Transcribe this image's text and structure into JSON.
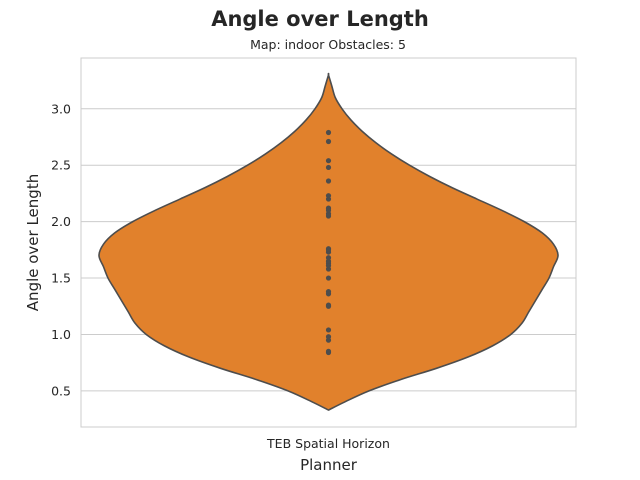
{
  "chart_data": {
    "type": "violin",
    "title": "Angle over Length",
    "subtitle": "Map: indoor Obstacles: 5",
    "xlabel": "Planner",
    "ylabel": "Angle over Length",
    "categories": [
      "TEB Spatial Horizon"
    ],
    "ylim": [
      0.18,
      3.45
    ],
    "yticks": [
      0.5,
      1.0,
      1.5,
      2.0,
      2.5,
      3.0
    ],
    "ytick_labels": [
      "0.5",
      "1.0",
      "1.5",
      "2.0",
      "2.5",
      "3.0"
    ],
    "grid": "horizontal",
    "fill_color": "#e1812c",
    "edge_color": "#4d4d4d",
    "point_color": "#4d4d4d",
    "violin_range": [
      0.33,
      3.3
    ],
    "density_profile": [
      [
        0.33,
        0.0
      ],
      [
        0.4,
        0.07
      ],
      [
        0.5,
        0.18
      ],
      [
        0.6,
        0.32
      ],
      [
        0.7,
        0.48
      ],
      [
        0.8,
        0.62
      ],
      [
        0.9,
        0.73
      ],
      [
        1.0,
        0.81
      ],
      [
        1.1,
        0.86
      ],
      [
        1.2,
        0.89
      ],
      [
        1.3,
        0.92
      ],
      [
        1.4,
        0.95
      ],
      [
        1.5,
        0.98
      ],
      [
        1.6,
        1.0
      ],
      [
        1.7,
        1.02
      ],
      [
        1.8,
        1.0
      ],
      [
        1.9,
        0.95
      ],
      [
        2.0,
        0.87
      ],
      [
        2.1,
        0.77
      ],
      [
        2.2,
        0.66
      ],
      [
        2.3,
        0.55
      ],
      [
        2.4,
        0.45
      ],
      [
        2.5,
        0.36
      ],
      [
        2.6,
        0.28
      ],
      [
        2.7,
        0.21
      ],
      [
        2.8,
        0.15
      ],
      [
        2.9,
        0.1
      ],
      [
        3.0,
        0.06
      ],
      [
        3.1,
        0.03
      ],
      [
        3.2,
        0.015
      ],
      [
        3.3,
        0.0
      ]
    ],
    "points": [
      0.84,
      0.85,
      0.95,
      0.98,
      1.04,
      1.25,
      1.26,
      1.36,
      1.38,
      1.5,
      1.58,
      1.61,
      1.63,
      1.65,
      1.68,
      1.73,
      1.75,
      1.76,
      2.05,
      2.07,
      2.1,
      2.12,
      2.2,
      2.23,
      2.36,
      2.48,
      2.54,
      2.71,
      2.79
    ]
  }
}
